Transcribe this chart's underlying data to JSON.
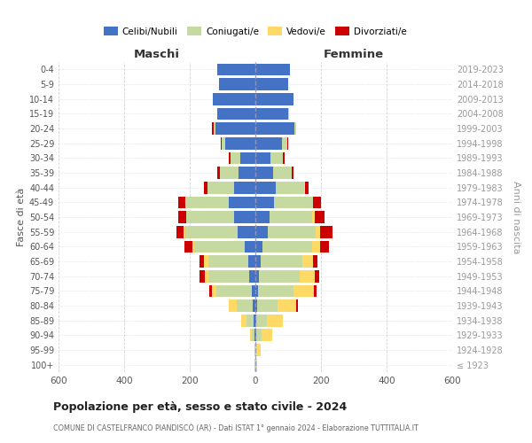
{
  "age_groups": [
    "100+",
    "95-99",
    "90-94",
    "85-89",
    "80-84",
    "75-79",
    "70-74",
    "65-69",
    "60-64",
    "55-59",
    "50-54",
    "45-49",
    "40-44",
    "35-39",
    "30-34",
    "25-29",
    "20-24",
    "15-19",
    "10-14",
    "5-9",
    "0-4"
  ],
  "birth_years": [
    "≤ 1923",
    "1924-1928",
    "1929-1933",
    "1934-1938",
    "1939-1943",
    "1944-1948",
    "1949-1953",
    "1954-1958",
    "1959-1963",
    "1964-1968",
    "1969-1973",
    "1974-1978",
    "1979-1983",
    "1984-1988",
    "1989-1993",
    "1994-1998",
    "1999-2003",
    "2004-2008",
    "2009-2013",
    "2014-2018",
    "2019-2023"
  ],
  "maschi_celibi": [
    1,
    1,
    3,
    5,
    8,
    12,
    18,
    22,
    32,
    55,
    65,
    80,
    65,
    52,
    45,
    92,
    122,
    115,
    130,
    110,
    115
  ],
  "maschi_coniugati": [
    1,
    2,
    8,
    22,
    50,
    108,
    125,
    122,
    155,
    158,
    145,
    132,
    82,
    55,
    32,
    12,
    5,
    2,
    0,
    0,
    0
  ],
  "maschi_vedovi": [
    0,
    0,
    5,
    15,
    22,
    12,
    12,
    12,
    6,
    6,
    2,
    2,
    0,
    0,
    0,
    0,
    0,
    0,
    0,
    0,
    0
  ],
  "maschi_divorziati": [
    0,
    0,
    0,
    0,
    2,
    8,
    15,
    15,
    22,
    22,
    22,
    22,
    10,
    8,
    5,
    2,
    5,
    0,
    0,
    0,
    0
  ],
  "femmine_nubili": [
    1,
    1,
    2,
    4,
    6,
    9,
    12,
    16,
    22,
    37,
    42,
    57,
    62,
    55,
    47,
    82,
    120,
    100,
    115,
    100,
    105
  ],
  "femmine_coniugate": [
    1,
    3,
    16,
    32,
    62,
    108,
    122,
    128,
    152,
    148,
    132,
    118,
    87,
    57,
    37,
    16,
    5,
    2,
    0,
    0,
    0
  ],
  "femmine_vedove": [
    3,
    12,
    32,
    47,
    57,
    62,
    48,
    32,
    22,
    12,
    6,
    2,
    2,
    0,
    0,
    0,
    0,
    0,
    0,
    0,
    0
  ],
  "femmine_divorziate": [
    0,
    0,
    0,
    2,
    5,
    8,
    12,
    14,
    28,
    38,
    32,
    22,
    12,
    5,
    5,
    2,
    0,
    0,
    0,
    0,
    0
  ],
  "colors": {
    "celibi": "#4472C4",
    "coniugati": "#c5d9a0",
    "vedovi": "#FFD966",
    "divorziati": "#CC0000"
  },
  "title": "Popolazione per età, sesso e stato civile - 2024",
  "subtitle": "COMUNE DI CASTELFRANCO PIANDISCÒ (AR) - Dati ISTAT 1° gennaio 2024 - Elaborazione TUTTITALIA.IT",
  "maschi_label": "Maschi",
  "femmine_label": "Femmine",
  "ylabel_left": "Fasce di età",
  "ylabel_right": "Anni di nascita",
  "xlim": 600,
  "legend_labels": [
    "Celibi/Nubili",
    "Coniugati/e",
    "Vedovi/e",
    "Divorziati/e"
  ],
  "background_color": "#ffffff",
  "grid_color": "#cccccc"
}
